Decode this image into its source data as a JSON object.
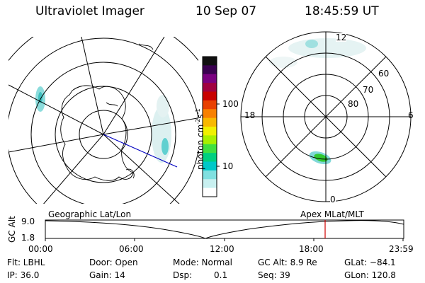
{
  "header": {
    "title": "Ultraviolet Imager",
    "date": "10 Sep 07",
    "time": "18:45:59 UT"
  },
  "colorbar": {
    "label": "photon cm",
    "label_exp": "-2",
    "label_s": "s",
    "label_s_exp": "-1",
    "ticks": [
      "100",
      "10"
    ],
    "colors": [
      "#101010",
      "#3a0050",
      "#7a0080",
      "#a00040",
      "#c80000",
      "#e84000",
      "#f88000",
      "#f8b800",
      "#f0f000",
      "#a8f000",
      "#40e040",
      "#00d080",
      "#00c8c8",
      "#80e0e0",
      "#c8f0f0",
      "#ffffff"
    ]
  },
  "mlt_plot": {
    "labels": {
      "top": "12",
      "bottom": "0",
      "left": "18",
      "right": "6"
    },
    "lat_labels": [
      "60",
      "70",
      "80"
    ]
  },
  "timeline": {
    "left_label": "Geographic Lat/Lon",
    "right_label": "Apex MLat/MLT",
    "axis_title": "GC Alt",
    "ytick_top": "9.0",
    "ytick_bottom": "1.8",
    "xticks": [
      "00:00",
      "06:00",
      "12:00",
      "18:00",
      "23:59"
    ]
  },
  "info": {
    "flt": "Flt: LBHL",
    "door": "Door: Open",
    "mode": "Mode: Normal",
    "gcalt": "GC Alt: 8.9 Re",
    "glat": "GLat: −84.1",
    "ip": "IP: 36.0",
    "gain": "Gain: 14",
    "dsp_label": "Dsp:",
    "dsp_value": "0.1",
    "seq": "Seq: 39",
    "glon": "GLon: 120.8"
  },
  "colors": {
    "marker": "#d00000",
    "track": "#0000c0",
    "aurora": "#80d8d8",
    "aurora_hot": "#30c830"
  }
}
